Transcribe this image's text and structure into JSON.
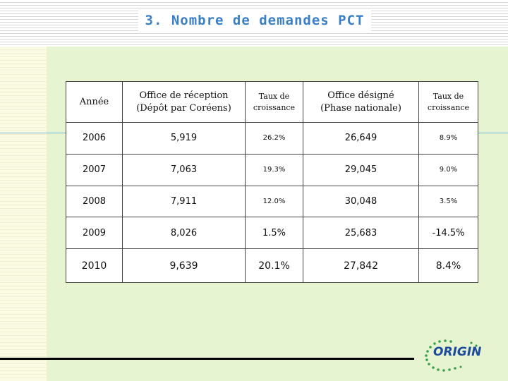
{
  "slide": {
    "title": "3. Nombre de demandes PCT"
  },
  "table": {
    "headers": [
      [
        "Année"
      ],
      [
        "Office de réception",
        "(Dépôt par Coréens)"
      ],
      [
        "Taux de",
        "croissance"
      ],
      [
        "Office désigné",
        "(Phase nationale)"
      ],
      [
        "Taux de",
        "croissance"
      ]
    ],
    "rows": [
      [
        "2006",
        "5,919",
        "26.2%",
        "26,649",
        "8.9%"
      ],
      [
        "2007",
        "7,063",
        "19.3%",
        "29,045",
        "9.0%"
      ],
      [
        "2008",
        "7,911",
        "12.0%",
        "30,048",
        "3.5%"
      ],
      [
        "2009",
        "8,026",
        "1.5%",
        "25,683",
        "-14.5%"
      ],
      [
        "2010",
        "9,639",
        "20.1%",
        "27,842",
        "8.4%"
      ]
    ]
  },
  "logo": {
    "text": "ORIGIN",
    "colors": {
      "text": "#1c4a9c",
      "dots": "#3aa04a"
    }
  },
  "colors": {
    "title": "#3b7fc4",
    "panel": "#e6f4d2",
    "strip": "#fbfbe3"
  }
}
